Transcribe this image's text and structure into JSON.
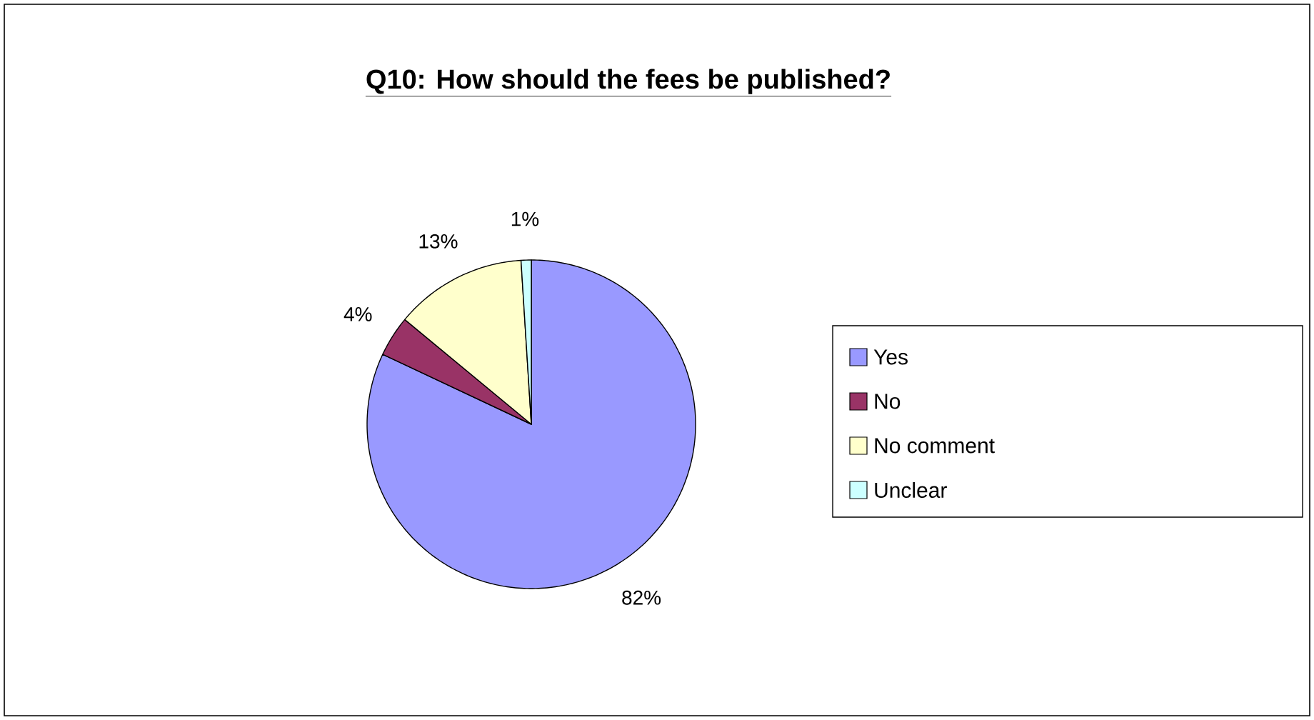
{
  "chart_data": {
    "type": "pie",
    "title": "Q10: How should the fees be published?",
    "categories": [
      "Yes",
      "No",
      "No comment",
      "Unclear"
    ],
    "values": [
      82,
      4,
      13,
      1
    ],
    "value_labels": [
      "82%",
      "4%",
      "13%",
      "1%"
    ],
    "colors": [
      "#9999ff",
      "#993366",
      "#ffffcc",
      "#ccffff"
    ],
    "legend": "right"
  }
}
